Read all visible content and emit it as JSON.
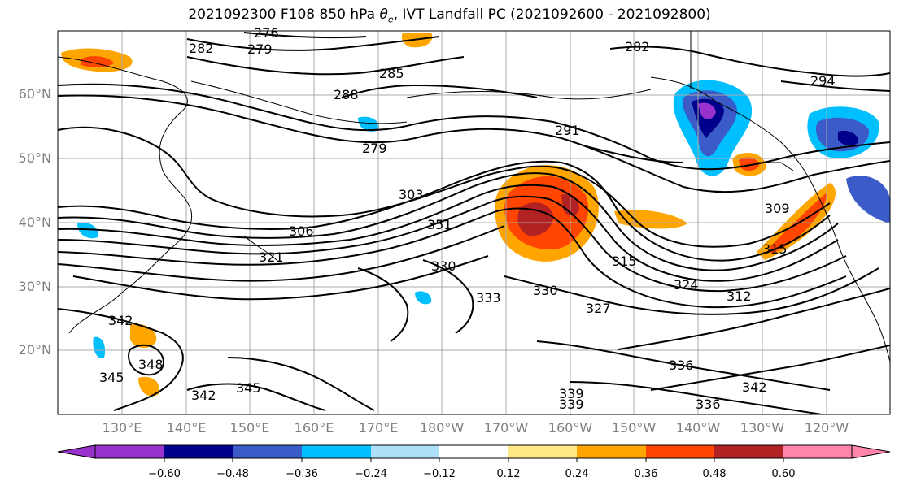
{
  "title_prefix": "2021092300 F108 850 hPa ",
  "title_symbol": "θ",
  "title_subscript": "e",
  "title_suffix": ", IVT Landfall PC (2021092600 - 2021092800)",
  "lat_labels": [
    "60°N",
    "50°N",
    "40°N",
    "30°N",
    "20°N"
  ],
  "lon_labels": [
    "130°E",
    "140°E",
    "150°E",
    "160°E",
    "170°E",
    "180°W",
    "170°W",
    "160°W",
    "150°W",
    "140°W",
    "130°W",
    "120°W"
  ],
  "colorbar": {
    "colors": [
      "#9932CC",
      "#00008B",
      "#3A5BC8",
      "#00BFFF",
      "#ADDFF8",
      "#FFFFFF",
      "#FFE885",
      "#FFA500",
      "#FF4500",
      "#B22222",
      "#FF85AA"
    ],
    "tick_labels": [
      "−0.60",
      "−0.48",
      "−0.36",
      "−0.24",
      "−0.12",
      "0.12",
      "0.24",
      "0.36",
      "0.48",
      "0.60"
    ]
  },
  "contour_labels": [
    "276",
    "282",
    "279",
    "282",
    "285",
    "288",
    "294",
    "291",
    "279",
    "303",
    "306",
    "321",
    "351",
    "330",
    "333",
    "330",
    "315",
    "327",
    "342",
    "345",
    "348",
    "345",
    "342",
    "339",
    "339",
    "336",
    "336",
    "342",
    "312",
    "324",
    "309",
    "315"
  ]
}
